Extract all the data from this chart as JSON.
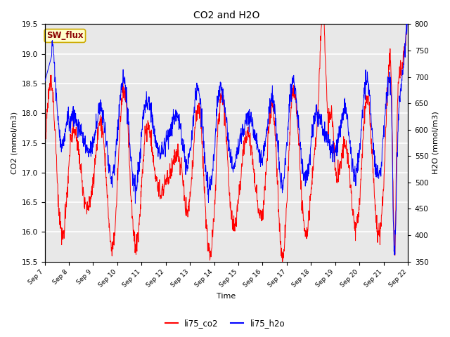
{
  "title": "CO2 and H2O",
  "xlabel": "Time",
  "ylabel_left": "CO2 (mmol/m3)",
  "ylabel_right": "H2O (mmol/m3)",
  "ylim_left": [
    15.5,
    19.5
  ],
  "ylim_right": [
    350,
    800
  ],
  "yticks_left": [
    15.5,
    16.0,
    16.5,
    17.0,
    17.5,
    18.0,
    18.5,
    19.0,
    19.5
  ],
  "yticks_right": [
    350,
    400,
    450,
    500,
    550,
    600,
    650,
    700,
    750,
    800
  ],
  "xtick_labels": [
    "Sep 7",
    "Sep 8",
    "Sep 9",
    "Sep 10",
    "Sep 11",
    "Sep 12",
    "Sep 13",
    "Sep 14",
    "Sep 15",
    "Sep 16",
    "Sep 17",
    "Sep 18",
    "Sep 19",
    "Sep 20",
    "Sep 21",
    "Sep 22"
  ],
  "legend_labels": [
    "li75_co2",
    "li75_h2o"
  ],
  "co2_color": "red",
  "h2o_color": "blue",
  "annotation_text": "SW_flux",
  "annotation_bg": "#ffffcc",
  "annotation_border": "#ccaa00",
  "bg_color": "#e8e8e8",
  "grid_color": "white",
  "n_points": 1500
}
